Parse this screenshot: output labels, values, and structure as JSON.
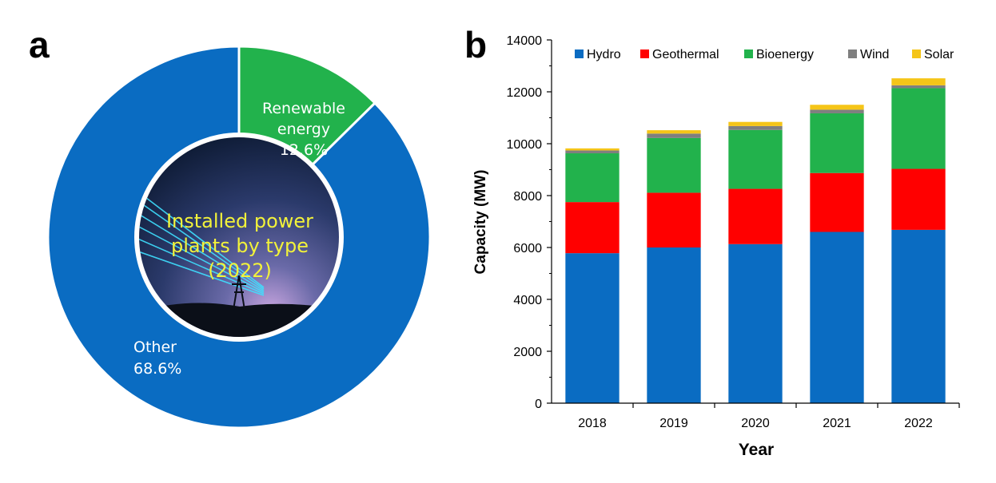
{
  "panels": {
    "a_label": "a",
    "b_label": "b"
  },
  "chart_data": [
    {
      "type": "pie",
      "variant": "donut",
      "center_title_lines": [
        "Installed power",
        "plants by type",
        "(2022)"
      ],
      "slices": [
        {
          "name_lines": [
            "Renewable",
            "energy"
          ],
          "percent_text": "12.6%",
          "value": 12.6,
          "color": "#22b24c"
        },
        {
          "name_lines": [
            "Other"
          ],
          "percent_text": "68.6%",
          "value": 68.6,
          "color": "#0a6cc2"
        }
      ]
    },
    {
      "type": "bar",
      "stacked": true,
      "xlabel": "Year",
      "ylabel": "Capacity (MW)",
      "ylim": [
        0,
        14000
      ],
      "yticks": [
        0,
        2000,
        4000,
        6000,
        8000,
        10000,
        12000,
        14000
      ],
      "categories": [
        "2018",
        "2019",
        "2020",
        "2021",
        "2022"
      ],
      "legend_position": "top",
      "series": [
        {
          "name": "Hydro",
          "color": "#0a6cc2",
          "values": [
            5780,
            6000,
            6130,
            6600,
            6680
          ]
        },
        {
          "name": "Geothermal",
          "color": "#ff0000",
          "values": [
            1970,
            2110,
            2130,
            2270,
            2350
          ]
        },
        {
          "name": "Bioenergy",
          "color": "#22b24c",
          "values": [
            1880,
            2110,
            2270,
            2300,
            3110
          ]
        },
        {
          "name": "Wind",
          "color": "#7f7f7f",
          "values": [
            110,
            170,
            150,
            140,
            110
          ]
        },
        {
          "name": "Solar",
          "color": "#f5c518",
          "values": [
            80,
            130,
            160,
            190,
            270
          ]
        }
      ]
    }
  ]
}
